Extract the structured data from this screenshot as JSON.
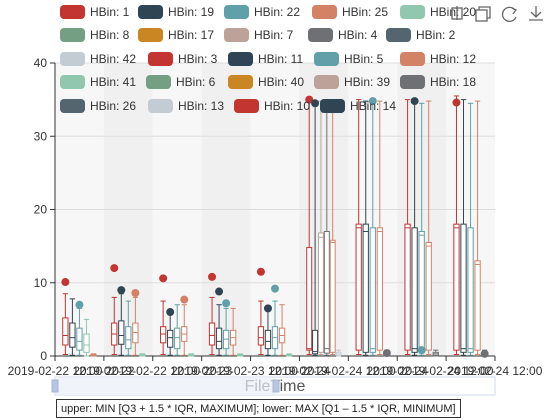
{
  "toolbox": {
    "icons": [
      "zoom-icon",
      "zoom-reset-icon",
      "restore-icon",
      "download-icon"
    ]
  },
  "tooltip": {
    "text": "upper: MIN [Q3 + 1.5 * IQR, MAXIMUM]; lower: MAX [Q1 – 1.5 * IQR, MINIMUM]"
  },
  "chart_data": {
    "type": "boxplot",
    "xlabel": "FileTime",
    "ylabel": "",
    "ylim": [
      0,
      40
    ],
    "y_ticks": [
      0,
      10,
      20,
      30,
      40
    ],
    "x_ticks": [
      "2019-02-22 12:00",
      "2019-02-22",
      "2019-02-22 12:00",
      "2019-02-23",
      "2019-02-23 12:00",
      "2019-02-24",
      "2019-02-24 12:00",
      "2019-02-24",
      "2019-02-24 12:00",
      "2019-02-24 12:00"
    ],
    "grid": true,
    "legend_position": "top",
    "legend": [
      {
        "name": "HBin: 1",
        "color": "#c23531"
      },
      {
        "name": "HBin: 19",
        "color": "#2f4554"
      },
      {
        "name": "HBin: 22",
        "color": "#61a0a8"
      },
      {
        "name": "HBin: 25",
        "color": "#d48265"
      },
      {
        "name": "HBin: 20",
        "color": "#91c7ae"
      },
      {
        "name": "HBin: 8",
        "color": "#749f83"
      },
      {
        "name": "HBin: 17",
        "color": "#ca8622"
      },
      {
        "name": "HBin: 7",
        "color": "#bda29a"
      },
      {
        "name": "HBin: 4",
        "color": "#6e7074"
      },
      {
        "name": "HBin: 2",
        "color": "#546570"
      },
      {
        "name": "HBin: 42",
        "color": "#c4ccd3"
      },
      {
        "name": "HBin: 3",
        "color": "#c23531"
      },
      {
        "name": "HBin: 11",
        "color": "#2f4554"
      },
      {
        "name": "HBin: 5",
        "color": "#61a0a8"
      },
      {
        "name": "HBin: 12",
        "color": "#d48265"
      },
      {
        "name": "HBin: 41",
        "color": "#91c7ae"
      },
      {
        "name": "HBin: 6",
        "color": "#749f83"
      },
      {
        "name": "HBin: 40",
        "color": "#ca8622"
      },
      {
        "name": "HBin: 39",
        "color": "#bda29a"
      },
      {
        "name": "HBin: 18",
        "color": "#6e7074"
      },
      {
        "name": "HBin: 26",
        "color": "#546570"
      },
      {
        "name": "HBin: 13",
        "color": "#c4ccd3"
      },
      {
        "name": "HBin: 10",
        "color": "#c23531"
      },
      {
        "name": "HBin: 14",
        "color": "#2f4554"
      }
    ],
    "groups": [
      {
        "boxes": [
          {
            "color": "#c23531",
            "min": 0.2,
            "q1": 1.5,
            "median": 2.8,
            "q3": 5.2,
            "max": 8.5
          },
          {
            "color": "#2f4554",
            "min": 0.1,
            "q1": 1.2,
            "median": 2.5,
            "q3": 4.5,
            "max": 7.8
          },
          {
            "color": "#61a0a8",
            "min": 0.1,
            "q1": 0.8,
            "median": 2.0,
            "q3": 3.8,
            "max": 6.5
          },
          {
            "color": "#91c7ae",
            "min": 0.0,
            "q1": 0.5,
            "median": 1.5,
            "q3": 3.0,
            "max": 5.0
          },
          {
            "color": "#d48265",
            "min": 0.0,
            "q1": 0.0,
            "median": 0.1,
            "q3": 0.2,
            "max": 0.3
          }
        ],
        "outliers": [
          {
            "color": "#c23531",
            "y": 10.1
          },
          {
            "color": "#61a0a8",
            "y": 7.0
          }
        ]
      },
      {
        "boxes": [
          {
            "color": "#c23531",
            "min": 0.2,
            "q1": 1.5,
            "median": 3.0,
            "q3": 4.5,
            "max": 8.0
          },
          {
            "color": "#2f4554",
            "min": 0.1,
            "q1": 1.6,
            "median": 2.8,
            "q3": 4.8,
            "max": 8.5
          },
          {
            "color": "#61a0a8",
            "min": 0.1,
            "q1": 1.0,
            "median": 2.2,
            "q3": 4.0,
            "max": 7.5
          },
          {
            "color": "#d48265",
            "min": 0.1,
            "q1": 1.8,
            "median": 3.2,
            "q3": 4.5,
            "max": 8.0
          },
          {
            "color": "#91c7ae",
            "min": 0.0,
            "q1": 0.0,
            "median": 0.1,
            "q3": 0.2,
            "max": 0.3
          }
        ],
        "outliers": [
          {
            "color": "#c23531",
            "y": 12.0
          },
          {
            "color": "#2f4554",
            "y": 9.0
          },
          {
            "color": "#d48265",
            "y": 8.6
          }
        ]
      },
      {
        "boxes": [
          {
            "color": "#c23531",
            "min": 0.2,
            "q1": 1.8,
            "median": 3.0,
            "q3": 4.0,
            "max": 7.5
          },
          {
            "color": "#2f4554",
            "min": 0.1,
            "q1": 1.2,
            "median": 2.5,
            "q3": 3.5,
            "max": 6.0
          },
          {
            "color": "#61a0a8",
            "min": 0.1,
            "q1": 1.0,
            "median": 2.5,
            "q3": 3.8,
            "max": 7.0
          },
          {
            "color": "#d48265",
            "min": 0.1,
            "q1": 2.0,
            "median": 3.0,
            "q3": 4.0,
            "max": 7.0
          },
          {
            "color": "#91c7ae",
            "min": 0.0,
            "q1": 0.0,
            "median": 0.1,
            "q3": 0.2,
            "max": 0.3
          }
        ],
        "outliers": [
          {
            "color": "#c23531",
            "y": 10.6
          },
          {
            "color": "#d48265",
            "y": 7.7
          },
          {
            "color": "#2f4554",
            "y": 6.0
          }
        ]
      },
      {
        "boxes": [
          {
            "color": "#c23531",
            "min": 0.2,
            "q1": 1.5,
            "median": 2.8,
            "q3": 4.5,
            "max": 8.0
          },
          {
            "color": "#2f4554",
            "min": 0.1,
            "q1": 1.0,
            "median": 2.0,
            "q3": 3.8,
            "max": 7.0
          },
          {
            "color": "#61a0a8",
            "min": 0.1,
            "q1": 1.0,
            "median": 2.3,
            "q3": 3.5,
            "max": 6.5
          },
          {
            "color": "#d48265",
            "min": 0.1,
            "q1": 1.5,
            "median": 2.5,
            "q3": 3.5,
            "max": 6.5
          },
          {
            "color": "#91c7ae",
            "min": 0.0,
            "q1": 0.0,
            "median": 0.1,
            "q3": 0.2,
            "max": 0.3
          }
        ],
        "outliers": [
          {
            "color": "#c23531",
            "y": 10.8
          },
          {
            "color": "#2f4554",
            "y": 8.8
          },
          {
            "color": "#61a0a8",
            "y": 7.2
          }
        ]
      },
      {
        "boxes": [
          {
            "color": "#c23531",
            "min": 0.2,
            "q1": 1.5,
            "median": 2.5,
            "q3": 4.0,
            "max": 7.5
          },
          {
            "color": "#2f4554",
            "min": 0.1,
            "q1": 1.0,
            "median": 2.0,
            "q3": 3.5,
            "max": 6.5
          },
          {
            "color": "#61a0a8",
            "min": 0.1,
            "q1": 1.0,
            "median": 2.5,
            "q3": 4.0,
            "max": 7.5
          },
          {
            "color": "#d48265",
            "min": 0.1,
            "q1": 1.8,
            "median": 2.8,
            "q3": 3.8,
            "max": 7.0
          },
          {
            "color": "#91c7ae",
            "min": 0.0,
            "q1": 0.0,
            "median": 0.1,
            "q3": 0.2,
            "max": 0.3
          }
        ],
        "outliers": [
          {
            "color": "#c23531",
            "y": 11.5
          },
          {
            "color": "#61a0a8",
            "y": 9.2
          },
          {
            "color": "#2f4554",
            "y": 6.5
          }
        ]
      },
      {
        "boxes": [
          {
            "color": "#c23531",
            "min": 0.2,
            "q1": 0.8,
            "median": 1.0,
            "q3": 14.8,
            "max": 35.0
          },
          {
            "color": "#2f4554",
            "min": 0.1,
            "q1": 0.3,
            "median": 0.6,
            "q3": 3.5,
            "max": 34.5
          },
          {
            "color": "#bda29a",
            "min": 0.2,
            "q1": 0.5,
            "median": 16.2,
            "q3": 16.8,
            "max": 34.8
          },
          {
            "color": "#6e7074",
            "min": 0.1,
            "q1": 0.4,
            "median": 1.0,
            "q3": 17.0,
            "max": 34.0
          },
          {
            "color": "#d48265",
            "min": 0.2,
            "q1": 0.5,
            "median": 15.5,
            "q3": 15.8,
            "max": 34.2
          },
          {
            "color": "#c4ccd3",
            "min": 0.0,
            "q1": 0.1,
            "median": 0.3,
            "q3": 0.5,
            "max": 0.8
          }
        ],
        "outliers": [
          {
            "color": "#c23531",
            "y": 35.0
          },
          {
            "color": "#2f4554",
            "y": 34.5
          }
        ]
      },
      {
        "boxes": [
          {
            "color": "#c23531",
            "min": 0.2,
            "q1": 0.8,
            "median": 17.5,
            "q3": 18.0,
            "max": 35.0
          },
          {
            "color": "#2f4554",
            "min": 0.1,
            "q1": 0.5,
            "median": 17.0,
            "q3": 18.0,
            "max": 34.8
          },
          {
            "color": "#61a0a8",
            "min": 0.1,
            "q1": 0.5,
            "median": 1.0,
            "q3": 17.5,
            "max": 34.5
          },
          {
            "color": "#d48265",
            "min": 0.2,
            "q1": 0.8,
            "median": 17.0,
            "q3": 17.5,
            "max": 34.8
          },
          {
            "color": "#6e7074",
            "min": 0.0,
            "q1": 0.1,
            "median": 0.3,
            "q3": 0.5,
            "max": 0.8
          }
        ],
        "outliers": [
          {
            "color": "#61a0a8",
            "y": 34.8
          },
          {
            "color": "#6e7074",
            "y": 0.4
          }
        ]
      },
      {
        "boxes": [
          {
            "color": "#c23531",
            "min": 0.2,
            "q1": 0.8,
            "median": 17.5,
            "q3": 18.0,
            "max": 35.0
          },
          {
            "color": "#2f4554",
            "min": 0.1,
            "q1": 0.5,
            "median": 1.0,
            "q3": 17.5,
            "max": 34.8
          },
          {
            "color": "#61a0a8",
            "min": 0.1,
            "q1": 0.5,
            "median": 16.5,
            "q3": 17.0,
            "max": 34.5
          },
          {
            "color": "#d48265",
            "min": 0.2,
            "q1": 0.8,
            "median": 15.0,
            "q3": 15.5,
            "max": 34.8
          },
          {
            "color": "#6e7074",
            "min": 0.0,
            "q1": 0.1,
            "median": 0.3,
            "q3": 0.5,
            "max": 0.8
          }
        ],
        "outliers": [
          {
            "color": "#2f4554",
            "y": 34.8
          },
          {
            "color": "#61a0a8",
            "y": 0.8
          }
        ]
      },
      {
        "boxes": [
          {
            "color": "#c23531",
            "min": 0.2,
            "q1": 0.8,
            "median": 17.5,
            "q3": 18.0,
            "max": 35.5
          },
          {
            "color": "#2f4554",
            "min": 0.1,
            "q1": 0.5,
            "median": 1.0,
            "q3": 18.0,
            "max": 35.0
          },
          {
            "color": "#61a0a8",
            "min": 0.1,
            "q1": 0.5,
            "median": 1.0,
            "q3": 17.5,
            "max": 34.5
          },
          {
            "color": "#d48265",
            "min": 0.2,
            "q1": 0.8,
            "median": 12.5,
            "q3": 13.0,
            "max": 34.8
          },
          {
            "color": "#6e7074",
            "min": 0.0,
            "q1": 0.1,
            "median": 0.3,
            "q3": 0.5,
            "max": 0.8
          }
        ],
        "outliers": [
          {
            "color": "#c23531",
            "y": 34.6
          },
          {
            "color": "#6e7074",
            "y": 0.3
          }
        ]
      }
    ]
  }
}
